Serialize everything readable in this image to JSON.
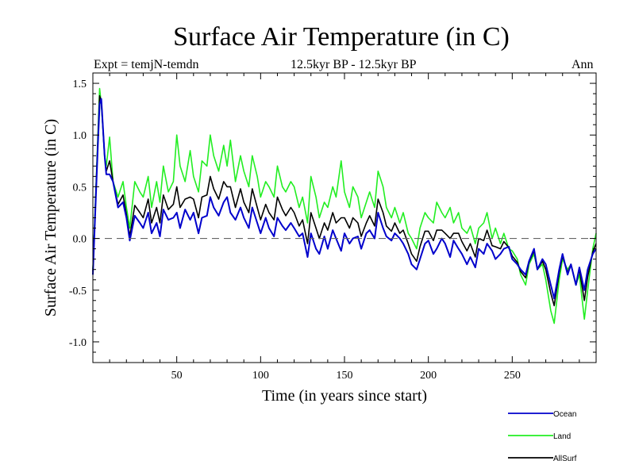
{
  "chart_data": {
    "type": "line",
    "title": "Surface Air Temperature (in C)",
    "expt_label": "Expt = temjN-temdn",
    "period_label": "12.5kyr BP - 12.5kyr BP",
    "season_label": "Ann",
    "xlabel": "Time (in years since start)",
    "ylabel": "Surface Air Temperature (in C)",
    "xlim": [
      0,
      300
    ],
    "ylim": [
      -1.2,
      1.6
    ],
    "xticks": [
      50,
      100,
      150,
      200,
      250
    ],
    "yticks": [
      -1.0,
      -0.5,
      0.0,
      0.5,
      1.0,
      1.5
    ],
    "ytick_labels": [
      "-1.0",
      "-0.5",
      "0.0",
      "0.5",
      "1.0",
      "1.5"
    ],
    "reference_line": 0.0,
    "series": [
      {
        "name": "Ocean",
        "color": "#0000cc",
        "x": [
          0,
          3,
          4,
          5,
          7,
          8,
          10,
          12,
          15,
          18,
          20,
          22,
          25,
          28,
          30,
          33,
          35,
          38,
          40,
          42,
          45,
          48,
          50,
          52,
          55,
          58,
          60,
          63,
          65,
          68,
          70,
          72,
          75,
          78,
          80,
          82,
          85,
          88,
          90,
          93,
          95,
          98,
          100,
          103,
          105,
          108,
          110,
          113,
          115,
          118,
          120,
          123,
          125,
          128,
          130,
          133,
          135,
          138,
          140,
          143,
          145,
          148,
          150,
          153,
          155,
          158,
          160,
          163,
          165,
          168,
          170,
          173,
          175,
          178,
          180,
          183,
          185,
          188,
          190,
          193,
          195,
          198,
          200,
          203,
          205,
          208,
          210,
          213,
          215,
          218,
          220,
          223,
          225,
          228,
          230,
          233,
          235,
          238,
          240,
          243,
          245,
          248,
          250,
          253,
          255,
          258,
          260,
          263,
          265,
          268,
          270,
          273,
          275,
          278,
          280,
          283,
          285,
          288,
          290,
          293,
          295,
          298,
          300
        ],
        "values": [
          -0.35,
          0.9,
          1.3,
          1.35,
          0.8,
          0.62,
          0.62,
          0.55,
          0.3,
          0.35,
          0.2,
          -0.02,
          0.22,
          0.15,
          0.1,
          0.25,
          0.05,
          0.15,
          0.02,
          0.28,
          0.18,
          0.2,
          0.25,
          0.1,
          0.28,
          0.18,
          0.25,
          0.05,
          0.2,
          0.22,
          0.4,
          0.3,
          0.22,
          0.35,
          0.4,
          0.25,
          0.18,
          0.3,
          0.2,
          0.1,
          0.3,
          0.15,
          0.05,
          0.2,
          0.1,
          0.02,
          0.2,
          0.12,
          0.08,
          0.15,
          0.1,
          0.02,
          0.05,
          -0.18,
          0.05,
          -0.1,
          -0.15,
          0.02,
          -0.1,
          0.08,
          0.0,
          -0.12,
          0.05,
          -0.05,
          0.0,
          0.02,
          -0.1,
          0.05,
          0.08,
          0.0,
          0.25,
          0.1,
          0.02,
          -0.02,
          0.05,
          0.0,
          -0.05,
          -0.15,
          -0.25,
          -0.3,
          -0.2,
          -0.05,
          -0.02,
          -0.15,
          -0.1,
          0.0,
          -0.05,
          -0.18,
          -0.02,
          -0.1,
          -0.15,
          -0.25,
          -0.18,
          -0.28,
          -0.1,
          -0.15,
          -0.05,
          -0.12,
          -0.2,
          -0.15,
          -0.1,
          -0.08,
          -0.2,
          -0.25,
          -0.3,
          -0.35,
          -0.22,
          -0.1,
          -0.3,
          -0.2,
          -0.25,
          -0.45,
          -0.58,
          -0.3,
          -0.15,
          -0.35,
          -0.25,
          -0.45,
          -0.28,
          -0.5,
          -0.3,
          -0.15,
          -0.1
        ]
      },
      {
        "name": "Land",
        "color": "#22ee22",
        "x": [
          0,
          3,
          4,
          5,
          7,
          8,
          10,
          12,
          15,
          18,
          20,
          22,
          25,
          28,
          30,
          33,
          35,
          38,
          40,
          42,
          45,
          48,
          50,
          52,
          55,
          58,
          60,
          63,
          65,
          68,
          70,
          72,
          75,
          78,
          80,
          82,
          85,
          88,
          90,
          93,
          95,
          98,
          100,
          103,
          105,
          108,
          110,
          113,
          115,
          118,
          120,
          123,
          125,
          128,
          130,
          133,
          135,
          138,
          140,
          143,
          145,
          148,
          150,
          153,
          155,
          158,
          160,
          163,
          165,
          168,
          170,
          173,
          175,
          178,
          180,
          183,
          185,
          188,
          190,
          193,
          195,
          198,
          200,
          203,
          205,
          208,
          210,
          213,
          215,
          218,
          220,
          223,
          225,
          228,
          230,
          233,
          235,
          238,
          240,
          243,
          245,
          248,
          250,
          253,
          255,
          258,
          260,
          263,
          265,
          268,
          270,
          273,
          275,
          278,
          280,
          283,
          285,
          288,
          290,
          293,
          295,
          298,
          300
        ],
        "values": [
          -0.3,
          1.0,
          1.45,
          1.3,
          0.8,
          0.7,
          0.98,
          0.55,
          0.4,
          0.55,
          0.3,
          0.1,
          0.55,
          0.45,
          0.4,
          0.6,
          0.3,
          0.55,
          0.35,
          0.7,
          0.45,
          0.55,
          1.0,
          0.7,
          0.55,
          0.85,
          0.6,
          0.45,
          0.75,
          0.7,
          1.0,
          0.8,
          0.65,
          0.9,
          0.7,
          0.95,
          0.55,
          0.8,
          0.65,
          0.5,
          0.8,
          0.6,
          0.4,
          0.55,
          0.5,
          0.4,
          0.7,
          0.5,
          0.45,
          0.55,
          0.5,
          0.3,
          0.4,
          0.15,
          0.6,
          0.4,
          0.2,
          0.35,
          0.3,
          0.5,
          0.4,
          0.75,
          0.45,
          0.3,
          0.5,
          0.4,
          0.2,
          0.35,
          0.45,
          0.3,
          0.65,
          0.5,
          0.3,
          0.2,
          0.3,
          0.15,
          0.25,
          0.05,
          0.0,
          -0.1,
          0.1,
          0.25,
          0.2,
          0.15,
          0.35,
          0.25,
          0.2,
          0.3,
          0.15,
          0.25,
          0.1,
          0.05,
          0.12,
          -0.05,
          0.1,
          0.15,
          0.25,
          0.0,
          0.1,
          -0.05,
          0.05,
          -0.1,
          -0.12,
          -0.2,
          -0.35,
          -0.45,
          -0.25,
          -0.15,
          -0.3,
          -0.25,
          -0.4,
          -0.7,
          -0.82,
          -0.4,
          -0.2,
          -0.3,
          -0.25,
          -0.45,
          -0.35,
          -0.78,
          -0.5,
          -0.1,
          0.05
        ]
      },
      {
        "name": "AllSurf",
        "color": "#000000",
        "x": [
          0,
          3,
          4,
          5,
          7,
          8,
          10,
          12,
          15,
          18,
          20,
          22,
          25,
          28,
          30,
          33,
          35,
          38,
          40,
          42,
          45,
          48,
          50,
          52,
          55,
          58,
          60,
          63,
          65,
          68,
          70,
          72,
          75,
          78,
          80,
          82,
          85,
          88,
          90,
          93,
          95,
          98,
          100,
          103,
          105,
          108,
          110,
          113,
          115,
          118,
          120,
          123,
          125,
          128,
          130,
          133,
          135,
          138,
          140,
          143,
          145,
          148,
          150,
          153,
          155,
          158,
          160,
          163,
          165,
          168,
          170,
          173,
          175,
          178,
          180,
          183,
          185,
          188,
          190,
          193,
          195,
          198,
          200,
          203,
          205,
          208,
          210,
          213,
          215,
          218,
          220,
          223,
          225,
          228,
          230,
          233,
          235,
          238,
          240,
          243,
          245,
          248,
          250,
          253,
          255,
          258,
          260,
          263,
          265,
          268,
          270,
          273,
          275,
          278,
          280,
          283,
          285,
          288,
          290,
          293,
          295,
          298,
          300
        ],
        "values": [
          -0.32,
          0.95,
          1.38,
          1.33,
          0.8,
          0.65,
          0.75,
          0.55,
          0.33,
          0.42,
          0.23,
          0.02,
          0.32,
          0.25,
          0.2,
          0.38,
          0.15,
          0.3,
          0.15,
          0.42,
          0.28,
          0.33,
          0.5,
          0.3,
          0.38,
          0.4,
          0.38,
          0.2,
          0.4,
          0.42,
          0.6,
          0.48,
          0.38,
          0.55,
          0.5,
          0.5,
          0.3,
          0.48,
          0.35,
          0.25,
          0.48,
          0.3,
          0.18,
          0.33,
          0.25,
          0.18,
          0.4,
          0.28,
          0.22,
          0.3,
          0.25,
          0.12,
          0.18,
          -0.05,
          0.25,
          0.1,
          0.0,
          0.15,
          0.08,
          0.25,
          0.15,
          0.2,
          0.2,
          0.1,
          0.2,
          0.15,
          0.02,
          0.15,
          0.22,
          0.12,
          0.38,
          0.25,
          0.12,
          0.07,
          0.15,
          0.05,
          0.08,
          -0.05,
          -0.15,
          -0.22,
          -0.08,
          0.07,
          0.07,
          -0.02,
          0.08,
          0.08,
          0.05,
          0.0,
          0.05,
          0.05,
          -0.03,
          -0.12,
          -0.05,
          -0.18,
          0.0,
          -0.02,
          0.08,
          -0.07,
          -0.08,
          -0.1,
          -0.03,
          -0.09,
          -0.17,
          -0.23,
          -0.32,
          -0.38,
          -0.23,
          -0.12,
          -0.3,
          -0.22,
          -0.3,
          -0.53,
          -0.65,
          -0.33,
          -0.17,
          -0.33,
          -0.25,
          -0.45,
          -0.3,
          -0.6,
          -0.37,
          -0.13,
          -0.05
        ]
      }
    ]
  }
}
